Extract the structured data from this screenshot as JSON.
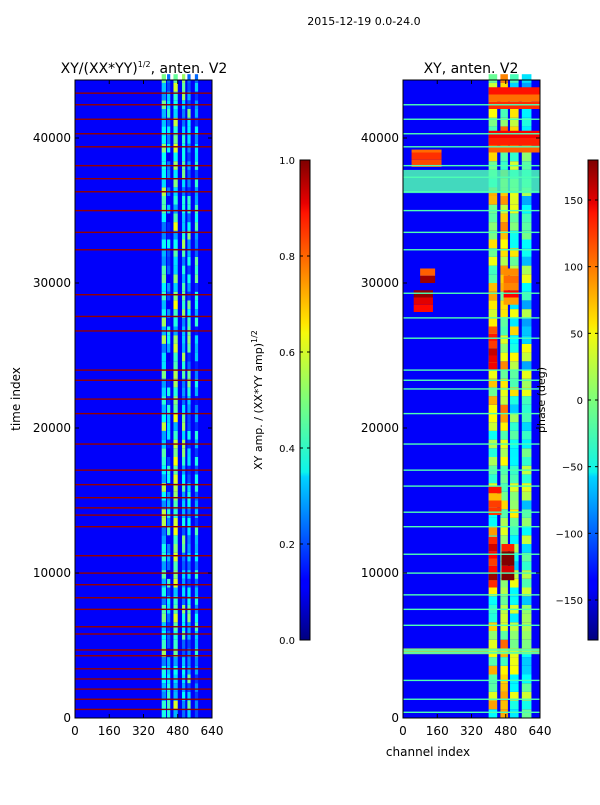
{
  "figure": {
    "suptitle": "2015-12-19 0.0-24.0",
    "shared_xlabel": "channel index"
  },
  "chart_data": [
    {
      "type": "heatmap",
      "title_main": "XY/(XX*YY)",
      "title_sup": "1/2",
      "title_tail": ", anten. V2",
      "xlabel": "",
      "ylabel": "time index",
      "xlim": [
        0,
        640
      ],
      "ylim": [
        0,
        44000
      ],
      "xticks": [
        0,
        160,
        320,
        480,
        640
      ],
      "yticks": [
        0,
        10000,
        20000,
        30000,
        40000
      ],
      "colormap": "jet",
      "colorbar": {
        "label_main": "XY amp. / (XX*YY amp)",
        "label_sup": "1/2",
        "min": 0.0,
        "max": 1.0,
        "ticks": [
          "0.0",
          "0.2",
          "0.4",
          "0.6",
          "0.8",
          "1.0"
        ]
      },
      "background_level": 0.12,
      "vertical_bands": [
        {
          "x0": 405,
          "x1": 425,
          "level": 0.4
        },
        {
          "x0": 430,
          "x1": 445,
          "level": 0.28
        },
        {
          "x0": 460,
          "x1": 480,
          "level": 0.45
        },
        {
          "x0": 500,
          "x1": 515,
          "level": 0.38
        },
        {
          "x0": 525,
          "x1": 540,
          "level": 0.35
        },
        {
          "x0": 560,
          "x1": 575,
          "level": 0.32
        }
      ],
      "flagged_rows": [
        600,
        1300,
        2000,
        2700,
        3400,
        4300,
        4700,
        5800,
        6300,
        7500,
        8300,
        9200,
        10000,
        11200,
        13200,
        14000,
        14500,
        15200,
        16100,
        17100,
        18900,
        21000,
        22000,
        23300,
        24000,
        26700,
        27700,
        29200,
        32300,
        33500,
        35000,
        36300,
        37200,
        38100,
        39400,
        40300,
        41300,
        42300,
        43100
      ],
      "flag_level": 0.98
    },
    {
      "type": "heatmap",
      "title_main": "XY, anten. V2",
      "xlabel": "channel index",
      "ylabel": "phase (deg)",
      "xlim": [
        0,
        640
      ],
      "ylim": [
        0,
        44000
      ],
      "xticks": [
        0,
        160,
        320,
        480,
        640
      ],
      "yticks": [
        0,
        10000,
        20000,
        30000,
        40000
      ],
      "colormap": "jet",
      "colorbar": {
        "label_main": "phase (deg)",
        "min": -180,
        "max": 180,
        "ticks": [
          "−150",
          "−100",
          "−50",
          "0",
          "50",
          "100",
          "150"
        ]
      },
      "background_level": 0.12,
      "vertical_bands": [
        {
          "x0": 400,
          "x1": 440,
          "level": 0.55
        },
        {
          "x0": 455,
          "x1": 490,
          "level": 0.6
        },
        {
          "x0": 500,
          "x1": 540,
          "level": 0.5
        },
        {
          "x0": 555,
          "x1": 600,
          "level": 0.45
        }
      ],
      "hot_patches": [
        {
          "x0": 400,
          "x1": 440,
          "y0": 9000,
          "y1": 12500,
          "level": 0.88
        },
        {
          "x0": 460,
          "x1": 520,
          "y0": 9500,
          "y1": 12000,
          "level": 0.92
        },
        {
          "x0": 400,
          "x1": 460,
          "y0": 14000,
          "y1": 16000,
          "level": 0.78
        },
        {
          "x0": 400,
          "x1": 440,
          "y0": 24000,
          "y1": 27000,
          "level": 0.85
        },
        {
          "x0": 470,
          "x1": 540,
          "y0": 28500,
          "y1": 31000,
          "level": 0.8
        },
        {
          "x0": 50,
          "x1": 140,
          "y0": 28000,
          "y1": 29500,
          "level": 0.9
        },
        {
          "x0": 80,
          "x1": 150,
          "y0": 30000,
          "y1": 31000,
          "level": 0.88
        },
        {
          "x0": 40,
          "x1": 180,
          "y0": 38000,
          "y1": 39200,
          "level": 0.82
        },
        {
          "x0": 400,
          "x1": 640,
          "y0": 39000,
          "y1": 40500,
          "level": 0.85
        },
        {
          "x0": 400,
          "x1": 640,
          "y0": 42000,
          "y1": 43500,
          "level": 0.83
        }
      ],
      "flagged_rows": [
        400,
        1300,
        2600,
        4500,
        4700,
        6400,
        7500,
        8500,
        10000,
        11300,
        13200,
        14200,
        16000,
        17100,
        18900,
        21000,
        22700,
        23300,
        24000,
        26200,
        27600,
        29300,
        32300,
        33500,
        35000,
        36300,
        37300,
        38100,
        39400,
        40300,
        41300,
        42300
      ],
      "flag_level": 0.45,
      "wide_bands": [
        {
          "y0": 36200,
          "y1": 37800,
          "level": 0.45
        },
        {
          "y0": 4400,
          "y1": 4800,
          "level": 0.55
        }
      ]
    }
  ]
}
